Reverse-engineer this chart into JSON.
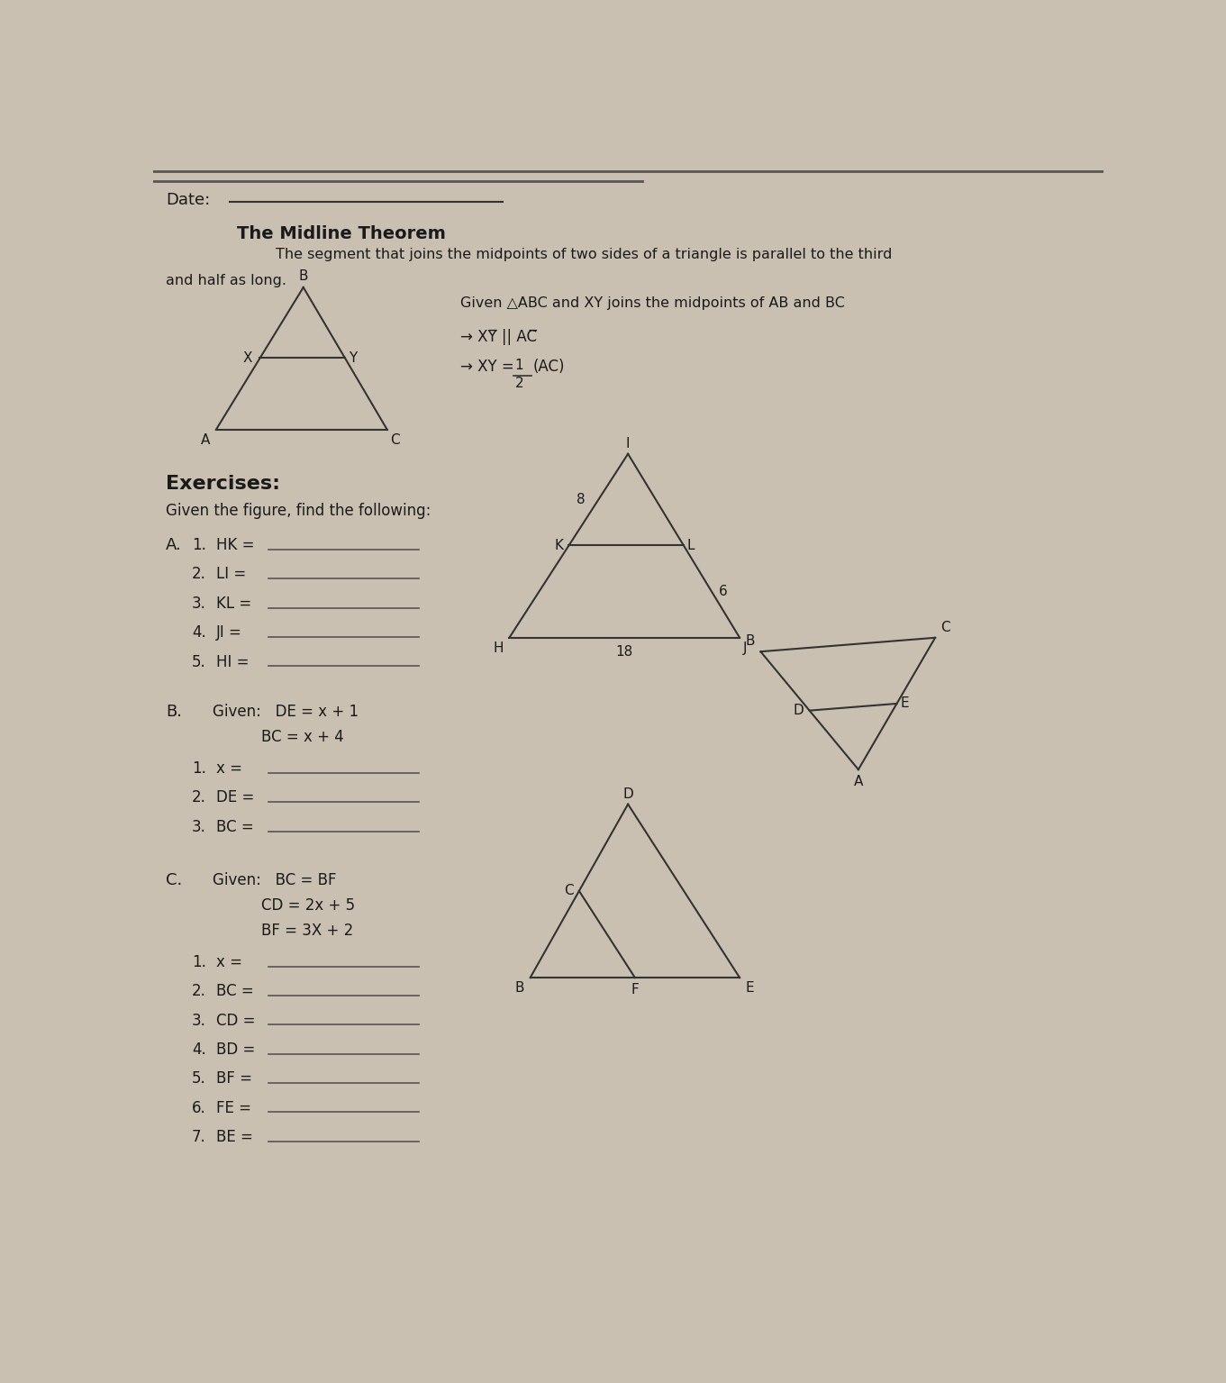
{
  "bg_color": "#c9c0b2",
  "text_color": "#1a1a1a",
  "title": "The Midline Theorem",
  "subtitle_part1": "The segment that joins the midpoints of two sides of a triangle is parallel to the third",
  "subtitle_part2": "and half as long.",
  "given_header": "Given △ABC and XY joins the midpoints of AB and BC",
  "given_line1": "→ XY̅ || AC̅",
  "given_line2_a": "→ XY = ",
  "given_line2_b": "(AC)",
  "exercises_title": "Exercises:",
  "exercises_sub": "Given the figure, find the following:",
  "secA_label": "A.",
  "secA_items": [
    [
      "1.",
      "HK = "
    ],
    [
      "2.",
      "LI = "
    ],
    [
      "3.",
      "KL = "
    ],
    [
      "4.",
      "JI = "
    ],
    [
      "5.",
      "HI = "
    ]
  ],
  "secB_label": "B.",
  "secB_given1": "Given:   DE = x + 1",
  "secB_given2": "BC = x + 4",
  "secB_items": [
    [
      "1.",
      "x = "
    ],
    [
      "2.",
      "DE = "
    ],
    [
      "3.",
      "BC = "
    ]
  ],
  "secC_label": "C.",
  "secC_given1": "Given:   BC = BF",
  "secC_given2": "CD = 2x + 5",
  "secC_given3": "BF = 3X + 2",
  "secC_items": [
    [
      "1.",
      "x = "
    ],
    [
      "2.",
      "BC = "
    ],
    [
      "3.",
      "CD = "
    ],
    [
      "4.",
      "BD = "
    ],
    [
      "5.",
      "BF = "
    ],
    [
      "6.",
      "FE = "
    ],
    [
      "7.",
      "BE = "
    ]
  ],
  "date_label": "Date:",
  "line_color": "#333333",
  "underline_color": "#555555"
}
